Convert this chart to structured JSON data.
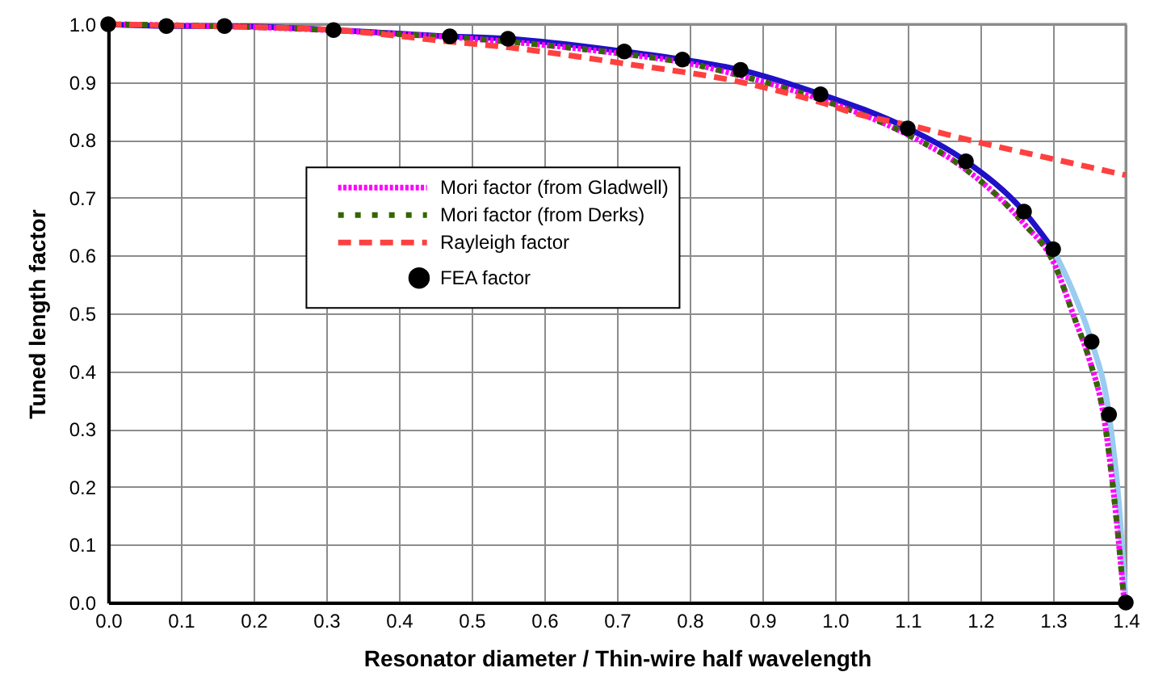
{
  "chart_data": {
    "type": "line",
    "xlabel": "Resonator diameter / Thin-wire half wavelength",
    "ylabel": "Tuned length factor",
    "xlim": [
      0,
      1.4
    ],
    "ylim": [
      0,
      1
    ],
    "xticks": [
      {
        "value": 0,
        "label": "0.0"
      },
      0.1,
      0.2,
      0.3,
      0.4,
      0.5,
      0.6,
      0.7,
      0.8,
      0.9,
      {
        "value": 1,
        "label": "1.0"
      },
      1.1,
      1.2,
      1.3,
      1.4
    ],
    "yticks": [
      {
        "value": 0,
        "label": "0.0"
      },
      0.1,
      0.2,
      0.3,
      0.4,
      0.5,
      0.6,
      0.7,
      0.8,
      0.9,
      {
        "value": 1,
        "label": "1.0"
      }
    ],
    "grid": true,
    "legend": "top left",
    "series": [
      {
        "color": "#99ccf0",
        "line_style": "solid",
        "x": [
          1.3,
          1.33,
          1.353,
          1.377,
          1.39,
          1.4
        ],
        "values": [
          0.611,
          0.53,
          0.451,
          0.325,
          0.18,
          0.0
        ]
      },
      {
        "color": "#2010c8",
        "line_style": "solid",
        "x": [
          0,
          0.08,
          0.16,
          0.31,
          0.47,
          0.55,
          0.71,
          0.79,
          0.87,
          0.98,
          1.1,
          1.18,
          1.26,
          1.3
        ],
        "values": [
          1.0,
          0.997,
          0.997,
          0.99,
          0.979,
          0.975,
          0.953,
          0.939,
          0.921,
          0.879,
          0.82,
          0.763,
          0.676,
          0.611
        ]
      },
      {
        "name": "Mori factor (from Gladwell)",
        "color": "#ff00ff",
        "line_style": "dotted",
        "x": [
          0,
          0.1,
          0.2,
          0.3,
          0.4,
          0.5,
          0.6,
          0.7,
          0.8,
          0.87,
          0.98,
          1.1,
          1.18,
          1.26,
          1.3,
          1.33,
          1.35,
          1.37,
          1.385,
          1.398
        ],
        "values": [
          1.0,
          0.998,
          0.995,
          0.99,
          0.983,
          0.975,
          0.964,
          0.95,
          0.932,
          0.911,
          0.87,
          0.809,
          0.749,
          0.655,
          0.59,
          0.49,
          0.42,
          0.32,
          0.17,
          0.0
        ]
      },
      {
        "name": "Mori factor (from Derks)",
        "color": "#336600",
        "line_style": "dotted",
        "x": [
          0,
          0.1,
          0.2,
          0.3,
          0.4,
          0.5,
          0.6,
          0.7,
          0.8,
          0.87,
          0.98,
          1.1,
          1.18,
          1.26,
          1.3,
          1.33,
          1.35,
          1.37,
          1.385,
          1.398
        ],
        "values": [
          1.0,
          0.998,
          0.995,
          0.99,
          0.983,
          0.975,
          0.964,
          0.95,
          0.932,
          0.911,
          0.87,
          0.809,
          0.749,
          0.655,
          0.59,
          0.49,
          0.42,
          0.32,
          0.17,
          0.0
        ]
      },
      {
        "name": "Rayleigh factor",
        "color": "#ff4040",
        "line_style": "dashed",
        "x": [
          0,
          0.16,
          0.31,
          0.47,
          0.55,
          0.71,
          0.87,
          0.98,
          1.03,
          1.1,
          1.2,
          1.3,
          1.4
        ],
        "values": [
          1.0,
          0.996,
          0.99,
          0.97,
          0.96,
          0.932,
          0.9,
          0.865,
          0.845,
          0.826,
          0.795,
          0.767,
          0.739
        ]
      },
      {
        "name": "FEA factor",
        "type": "scatter",
        "color": "#000000",
        "marker": "circle",
        "x": [
          0,
          0.08,
          0.16,
          0.31,
          0.47,
          0.55,
          0.71,
          0.79,
          0.87,
          0.98,
          1.1,
          1.18,
          1.26,
          1.3,
          1.353,
          1.377,
          1.4
        ],
        "values": [
          1.0,
          0.997,
          0.997,
          0.99,
          0.979,
          0.975,
          0.953,
          0.939,
          0.921,
          0.879,
          0.82,
          0.763,
          0.676,
          0.611,
          0.451,
          0.325,
          0.0
        ]
      }
    ]
  }
}
